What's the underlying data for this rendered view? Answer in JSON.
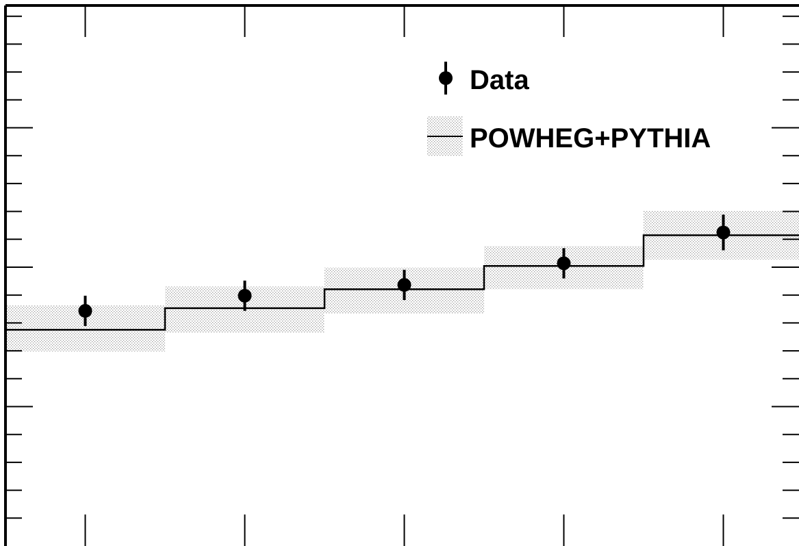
{
  "chart_data": {
    "type": "step",
    "xlim": [
      0,
      5
    ],
    "ylim": [
      0,
      1
    ],
    "grid": false,
    "legend_placement": "top-right",
    "series": [
      {
        "name": "Data",
        "style": "points-with-errorbars",
        "x": [
          0.5,
          1.5,
          2.5,
          3.5,
          4.5
        ],
        "values": [
          0.435,
          0.463,
          0.483,
          0.523,
          0.58
        ],
        "err": [
          0.028,
          0.028,
          0.028,
          0.028,
          0.033
        ]
      },
      {
        "name": "POWHEG+PYTHIA",
        "style": "step-with-band",
        "bin_edges": [
          0,
          1,
          2,
          3,
          4,
          5
        ],
        "values": [
          0.4,
          0.44,
          0.475,
          0.518,
          0.575
        ],
        "band_low": [
          0.36,
          0.395,
          0.43,
          0.475,
          0.53
        ],
        "band_high": [
          0.445,
          0.48,
          0.515,
          0.555,
          0.62
        ]
      }
    ],
    "colors": {
      "data": "#000000",
      "model_line": "#000000",
      "band": "#b4b4b4"
    }
  }
}
